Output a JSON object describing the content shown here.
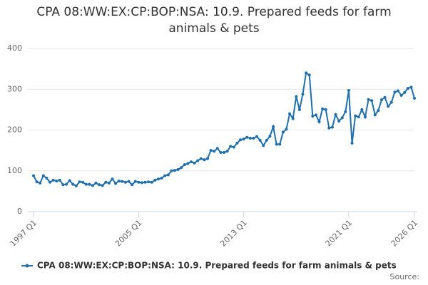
{
  "chart_data": {
    "type": "line",
    "title": "CPA 08:WW:EX:CP:BOP:NSA: 10.9. Prepared feeds for farm animals & pets",
    "categories": [
      "1997 Q1",
      null,
      null,
      null,
      null,
      null,
      null,
      null,
      null,
      null,
      null,
      null,
      null,
      null,
      null,
      null,
      null,
      null,
      null,
      null,
      null,
      null,
      null,
      null,
      null,
      null,
      null,
      null,
      null,
      null,
      null,
      null,
      "2005 Q1",
      null,
      null,
      null,
      null,
      null,
      null,
      null,
      null,
      null,
      null,
      null,
      null,
      null,
      null,
      null,
      null,
      null,
      null,
      null,
      null,
      null,
      null,
      null,
      null,
      null,
      null,
      null,
      null,
      null,
      null,
      null,
      "2013 Q1",
      null,
      null,
      null,
      null,
      null,
      null,
      null,
      null,
      null,
      null,
      null,
      null,
      null,
      null,
      null,
      null,
      null,
      null,
      null,
      null,
      null,
      null,
      null,
      null,
      null,
      null,
      null,
      null,
      null,
      null,
      null,
      "2021 Q1",
      null,
      null,
      null,
      null,
      null,
      null,
      null,
      null,
      null,
      null,
      null,
      null,
      null,
      null,
      null,
      null,
      null,
      null,
      null,
      "2026 Q1"
    ],
    "series": [
      {
        "name": "CPA 08:WW:EX:CP:BOP:NSA: 10.9. Prepared feeds for farm animals & pets",
        "color": "#1f6fad",
        "values": [
          88,
          73,
          70,
          88,
          82,
          72,
          77,
          75,
          77,
          66,
          67,
          76,
          67,
          63,
          73,
          72,
          67,
          67,
          64,
          70,
          66,
          64,
          72,
          70,
          80,
          69,
          75,
          74,
          72,
          74,
          66,
          74,
          72,
          71,
          72,
          73,
          72,
          77,
          80,
          82,
          88,
          90,
          100,
          101,
          103,
          108,
          115,
          118,
          122,
          119,
          125,
          130,
          127,
          130,
          150,
          148,
          155,
          145,
          145,
          148,
          160,
          158,
          168,
          176,
          178,
          182,
          180,
          180,
          184,
          175,
          162,
          175,
          185,
          208,
          165,
          165,
          195,
          202,
          240,
          228,
          282,
          250,
          288,
          340,
          335,
          234,
          237,
          220,
          252,
          250,
          205,
          207,
          238,
          222,
          230,
          245,
          297,
          168,
          235,
          232,
          250,
          232,
          275,
          272,
          237,
          248,
          274,
          280,
          258,
          268,
          293,
          296,
          285,
          292,
          302,
          305,
          278
        ]
      }
    ],
    "ylim": [
      0,
      400
    ],
    "yticks": [
      0,
      100,
      200,
      300,
      400
    ],
    "grid": true,
    "legend": "bottom",
    "source": "Source:"
  }
}
